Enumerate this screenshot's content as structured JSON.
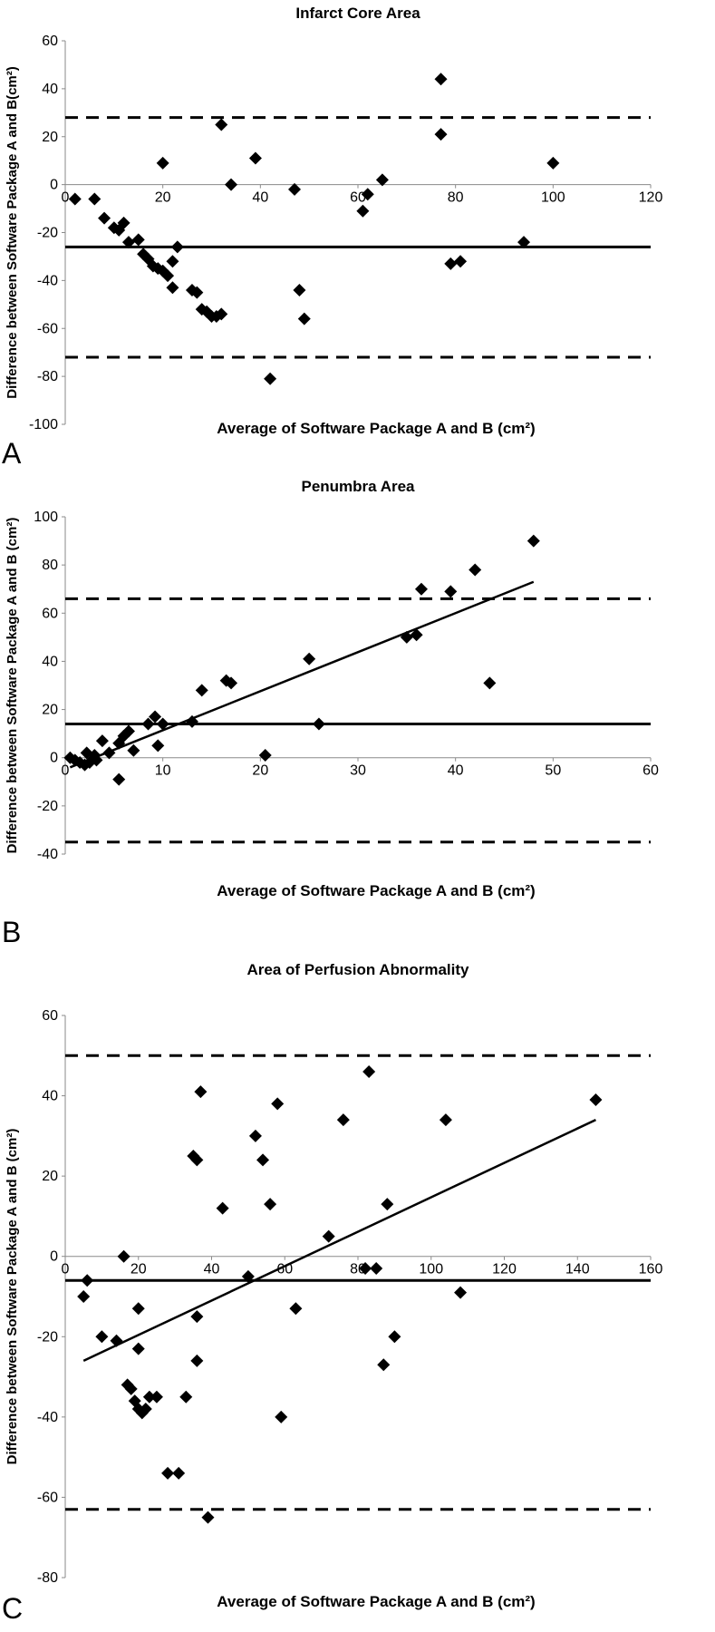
{
  "chart_data": [
    {
      "panel": "A",
      "type": "scatter",
      "title": "Infarct Core Area",
      "xlabel": "Average of Software Package A and B (cm²)",
      "ylabel": "Difference between Software Package  A and B(cm²)",
      "xlim": [
        0,
        120
      ],
      "ylim": [
        -100,
        60
      ],
      "xticks": [
        0,
        20,
        40,
        60,
        80,
        100,
        120
      ],
      "yticks": [
        -100,
        -80,
        -60,
        -40,
        -20,
        0,
        20,
        40,
        60
      ],
      "grid": false,
      "legend": "none",
      "reference_lines": [
        {
          "kind": "mean",
          "style": "solid",
          "y": -26
        },
        {
          "kind": "upper_limit",
          "style": "dashed",
          "y": 28
        },
        {
          "kind": "lower_limit",
          "style": "dashed",
          "y": -72
        }
      ],
      "points": [
        [
          2,
          -6
        ],
        [
          6,
          -6
        ],
        [
          8,
          -14
        ],
        [
          10,
          -18
        ],
        [
          11,
          -19
        ],
        [
          12,
          -16
        ],
        [
          13,
          -24
        ],
        [
          15,
          -23
        ],
        [
          16,
          -29
        ],
        [
          17,
          -31
        ],
        [
          18,
          -34
        ],
        [
          19,
          -35
        ],
        [
          20,
          -36
        ],
        [
          21,
          -38
        ],
        [
          22,
          -43
        ],
        [
          23,
          -26
        ],
        [
          26,
          -44
        ],
        [
          27,
          -45
        ],
        [
          28,
          -52
        ],
        [
          29,
          -53
        ],
        [
          30,
          -55
        ],
        [
          31,
          -55
        ],
        [
          32,
          -54
        ],
        [
          22,
          -32
        ],
        [
          20,
          9
        ],
        [
          32,
          25
        ],
        [
          34,
          0
        ],
        [
          39,
          11
        ],
        [
          42,
          -81
        ],
        [
          47,
          -2
        ],
        [
          48,
          -44
        ],
        [
          49,
          -56
        ],
        [
          61,
          -11
        ],
        [
          62,
          -4
        ],
        [
          65,
          2
        ],
        [
          77,
          44
        ],
        [
          77,
          21
        ],
        [
          79,
          -33
        ],
        [
          81,
          -32
        ],
        [
          94,
          -24
        ],
        [
          100,
          9
        ]
      ]
    },
    {
      "panel": "B",
      "type": "scatter",
      "title": "Penumbra Area",
      "xlabel": "Average of Software Package A and B (cm²)",
      "ylabel": "Difference between Software Package A and B (cm²)",
      "xlim": [
        0,
        60
      ],
      "ylim": [
        -40,
        100
      ],
      "xticks": [
        0,
        10,
        20,
        30,
        40,
        50,
        60
      ],
      "yticks": [
        -40,
        -20,
        0,
        20,
        40,
        60,
        80,
        100
      ],
      "grid": false,
      "legend": "none",
      "reference_lines": [
        {
          "kind": "mean",
          "style": "solid",
          "y": 14
        },
        {
          "kind": "upper_limit",
          "style": "dashed",
          "y": 66
        },
        {
          "kind": "lower_limit",
          "style": "dashed",
          "y": -35
        }
      ],
      "regression_line": {
        "x1": 0.5,
        "y1": -4,
        "x2": 48,
        "y2": 73
      },
      "points": [
        [
          0.5,
          0
        ],
        [
          1,
          -1
        ],
        [
          1.5,
          -2
        ],
        [
          2,
          -3
        ],
        [
          2.2,
          2
        ],
        [
          2.5,
          -2
        ],
        [
          3,
          1
        ],
        [
          3.2,
          -1
        ],
        [
          3.8,
          7
        ],
        [
          4.5,
          2
        ],
        [
          5.5,
          6
        ],
        [
          6,
          9
        ],
        [
          6.5,
          11
        ],
        [
          7,
          3
        ],
        [
          8.5,
          14
        ],
        [
          9.2,
          17
        ],
        [
          9.5,
          5
        ],
        [
          10,
          14
        ],
        [
          5.5,
          -9
        ],
        [
          13,
          15
        ],
        [
          14,
          28
        ],
        [
          16.5,
          32
        ],
        [
          17,
          31
        ],
        [
          20.5,
          1
        ],
        [
          25,
          41
        ],
        [
          26,
          14
        ],
        [
          35,
          50
        ],
        [
          36,
          51
        ],
        [
          36.5,
          70
        ],
        [
          39.5,
          69
        ],
        [
          42,
          78
        ],
        [
          43.5,
          31
        ],
        [
          48,
          90
        ]
      ]
    },
    {
      "panel": "C",
      "type": "scatter",
      "title": "Area of Perfusion Abnormality",
      "xlabel": "Average of Software Package A and B (cm²)",
      "ylabel": "Difference between Software Package A and B (cm²)",
      "xlim": [
        0,
        160
      ],
      "ylim": [
        -80,
        60
      ],
      "xticks": [
        0,
        20,
        40,
        60,
        80,
        100,
        120,
        140,
        160
      ],
      "yticks": [
        -80,
        -60,
        -40,
        -20,
        0,
        20,
        40,
        60
      ],
      "grid": false,
      "legend": "none",
      "reference_lines": [
        {
          "kind": "mean",
          "style": "solid",
          "y": -6
        },
        {
          "kind": "upper_limit",
          "style": "dashed",
          "y": 50
        },
        {
          "kind": "lower_limit",
          "style": "dashed",
          "y": -63
        }
      ],
      "regression_line": {
        "x1": 5,
        "y1": -26,
        "x2": 145,
        "y2": 34
      },
      "points": [
        [
          5,
          -10
        ],
        [
          6,
          -6
        ],
        [
          10,
          -20
        ],
        [
          14,
          -21
        ],
        [
          16,
          0
        ],
        [
          17,
          -32
        ],
        [
          18,
          -33
        ],
        [
          19,
          -36
        ],
        [
          20,
          -38
        ],
        [
          20,
          -23
        ],
        [
          20,
          -13
        ],
        [
          21,
          -39
        ],
        [
          22,
          -38
        ],
        [
          23,
          -35
        ],
        [
          25,
          -35
        ],
        [
          28,
          -54
        ],
        [
          31,
          -54
        ],
        [
          33,
          -35
        ],
        [
          35,
          25
        ],
        [
          36,
          24
        ],
        [
          36,
          -15
        ],
        [
          36,
          -26
        ],
        [
          37,
          41
        ],
        [
          39,
          -65
        ],
        [
          43,
          12
        ],
        [
          50,
          -5
        ],
        [
          52,
          30
        ],
        [
          54,
          24
        ],
        [
          56,
          13
        ],
        [
          58,
          38
        ],
        [
          59,
          -40
        ],
        [
          63,
          -13
        ],
        [
          72,
          5
        ],
        [
          76,
          34
        ],
        [
          82,
          -3
        ],
        [
          83,
          46
        ],
        [
          85,
          -3
        ],
        [
          87,
          -27
        ],
        [
          88,
          13
        ],
        [
          90,
          -20
        ],
        [
          104,
          34
        ],
        [
          108,
          -9
        ],
        [
          145,
          39
        ]
      ]
    }
  ]
}
